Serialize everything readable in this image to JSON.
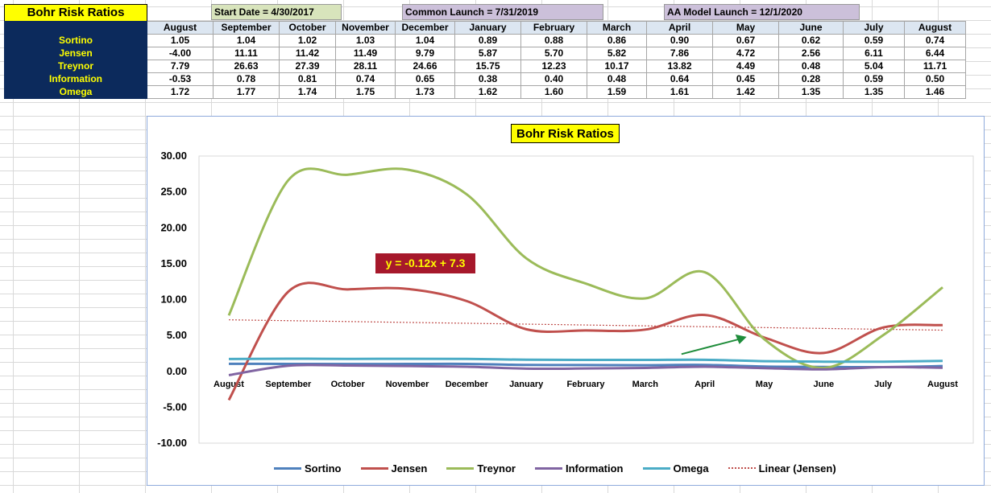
{
  "sheet": {
    "title": "Bohr Risk Ratios",
    "notes": [
      "Start Date = 4/30/2017",
      "Common Launch = 7/31/2019",
      "AA Model Launch = 12/1/2020"
    ],
    "months": [
      "August",
      "September",
      "October",
      "November",
      "December",
      "January",
      "February",
      "March",
      "April",
      "May",
      "June",
      "July",
      "August"
    ],
    "rows": [
      {
        "label": "Sortino",
        "values": [
          "1.05",
          "1.04",
          "1.02",
          "1.03",
          "1.04",
          "0.89",
          "0.88",
          "0.86",
          "0.90",
          "0.67",
          "0.62",
          "0.59",
          "0.74"
        ]
      },
      {
        "label": "Jensen",
        "values": [
          "-4.00",
          "11.11",
          "11.42",
          "11.49",
          "9.79",
          "5.87",
          "5.70",
          "5.82",
          "7.86",
          "4.72",
          "2.56",
          "6.11",
          "6.44"
        ]
      },
      {
        "label": "Treynor",
        "values": [
          "7.79",
          "26.63",
          "27.39",
          "28.11",
          "24.66",
          "15.75",
          "12.23",
          "10.17",
          "13.82",
          "4.49",
          "0.48",
          "5.04",
          "11.71"
        ]
      },
      {
        "label": "Information",
        "values": [
          "-0.53",
          "0.78",
          "0.81",
          "0.74",
          "0.65",
          "0.38",
          "0.40",
          "0.48",
          "0.64",
          "0.45",
          "0.28",
          "0.59",
          "0.50"
        ]
      },
      {
        "label": "Omega",
        "values": [
          "1.72",
          "1.77",
          "1.74",
          "1.75",
          "1.73",
          "1.62",
          "1.60",
          "1.59",
          "1.61",
          "1.42",
          "1.35",
          "1.35",
          "1.46"
        ]
      }
    ]
  },
  "chart_data": {
    "type": "line",
    "title": "Bohr Risk Ratios",
    "categories": [
      "August",
      "September",
      "October",
      "November",
      "December",
      "January",
      "February",
      "March",
      "April",
      "May",
      "June",
      "July",
      "August"
    ],
    "ylim": [
      -10,
      30
    ],
    "yticks": [
      "30.00",
      "25.00",
      "20.00",
      "15.00",
      "10.00",
      "5.00",
      "0.00",
      "-5.00",
      "-10.00"
    ],
    "grid": false,
    "legend_position": "bottom",
    "series": [
      {
        "name": "Sortino",
        "color": "#4f81bd",
        "values": [
          1.05,
          1.04,
          1.02,
          1.03,
          1.04,
          0.89,
          0.88,
          0.86,
          0.9,
          0.67,
          0.62,
          0.59,
          0.74
        ]
      },
      {
        "name": "Jensen",
        "color": "#c0504d",
        "values": [
          -4.0,
          11.11,
          11.42,
          11.49,
          9.79,
          5.87,
          5.7,
          5.82,
          7.86,
          4.72,
          2.56,
          6.11,
          6.44
        ]
      },
      {
        "name": "Treynor",
        "color": "#9bbb59",
        "values": [
          7.79,
          26.63,
          27.39,
          28.11,
          24.66,
          15.75,
          12.23,
          10.17,
          13.82,
          4.49,
          0.48,
          5.04,
          11.71
        ]
      },
      {
        "name": "Information",
        "color": "#8064a2",
        "values": [
          -0.53,
          0.78,
          0.81,
          0.74,
          0.65,
          0.38,
          0.4,
          0.48,
          0.64,
          0.45,
          0.28,
          0.59,
          0.5
        ]
      },
      {
        "name": "Omega",
        "color": "#4bacc6",
        "values": [
          1.72,
          1.77,
          1.74,
          1.75,
          1.73,
          1.62,
          1.6,
          1.59,
          1.61,
          1.42,
          1.35,
          1.35,
          1.46
        ]
      }
    ],
    "trendline": {
      "name": "Linear (Jensen)",
      "color": "#c0504d",
      "slope": -0.12,
      "intercept": 7.3,
      "equation": "y = -0.12x + 7.3"
    },
    "arrow_color": "#1e8c3a"
  }
}
